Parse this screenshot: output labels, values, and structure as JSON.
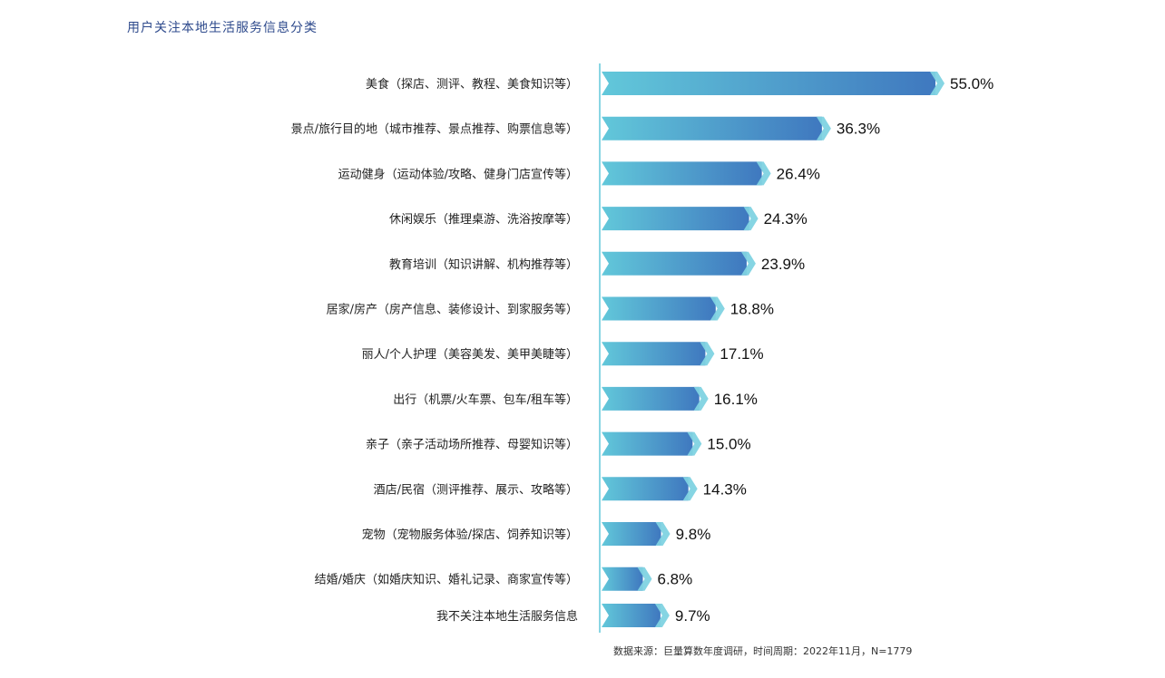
{
  "title": "用户关注本地生活服务信息分类",
  "source": "数据来源：巨量算数年度调研，时间周期：2022年11月，N=1779",
  "colors": {
    "bar_start": "#62c8da",
    "bar_end": "#3f78bf",
    "tip": "#7fd3e2",
    "axis": "#62c8da",
    "title": "#2e4a8c"
  },
  "chart_data": {
    "type": "bar",
    "orientation": "horizontal",
    "categories": [
      "美食（探店、测评、教程、美食知识等）",
      "景点/旅行目的地（城市推荐、景点推荐、购票信息等）",
      "运动健身（运动体验/攻略、健身门店宣传等）",
      "休闲娱乐（推理桌游、洗浴按摩等）",
      "教育培训（知识讲解、机构推荐等）",
      "居家/房产（房产信息、装修设计、到家服务等）",
      "丽人/个人护理（美容美发、美甲美睫等）",
      "出行（机票/火车票、包车/租车等）",
      "亲子（亲子活动场所推荐、母婴知识等）",
      "酒店/民宿（测评推荐、展示、攻略等）",
      "宠物（宠物服务体验/探店、饲养知识等）",
      "结婚/婚庆（如婚庆知识、婚礼记录、商家宣传等）",
      "我不关注本地生活服务信息"
    ],
    "values": [
      55.0,
      36.3,
      26.4,
      24.3,
      23.9,
      18.8,
      17.1,
      16.1,
      15.0,
      14.3,
      9.8,
      6.8,
      9.7
    ],
    "value_labels": [
      "55.0%",
      "36.3%",
      "26.4%",
      "24.3%",
      "23.9%",
      "18.8%",
      "17.1%",
      "16.1%",
      "15.0%",
      "14.3%",
      "9.8%",
      "6.8%",
      "9.7%"
    ],
    "xlim": [
      0,
      55.0
    ],
    "grid": false,
    "legend": "none"
  }
}
